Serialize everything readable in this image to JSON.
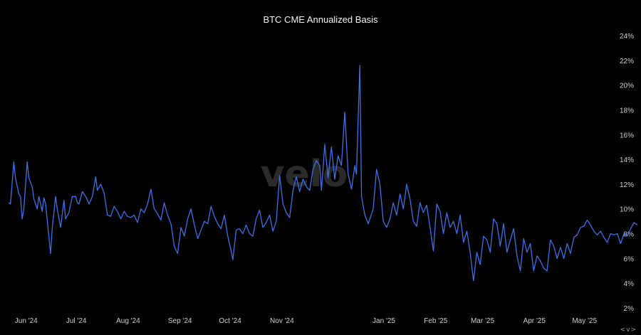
{
  "watermark": "velo",
  "nav": {
    "label": "<v>"
  },
  "chart_data": {
    "type": "line",
    "title": "BTC CME Annualized Basis",
    "xlabel": "",
    "ylabel": "",
    "ylim": [
      2,
      24
    ],
    "y_unit": "%",
    "y_ticks": [
      "24%",
      "22%",
      "20%",
      "18%",
      "16%",
      "14%",
      "12%",
      "10%",
      "8%",
      "6%",
      "4%",
      "2%"
    ],
    "x_range": [
      "2024-05-27",
      "2025-05-25"
    ],
    "x_ticks": [
      {
        "date": "2024-06-01",
        "label": "Jun '24"
      },
      {
        "date": "2024-07-01",
        "label": "Jul '24"
      },
      {
        "date": "2024-08-01",
        "label": "Aug '24"
      },
      {
        "date": "2024-09-01",
        "label": "Sep '24"
      },
      {
        "date": "2024-10-01",
        "label": "Oct '24"
      },
      {
        "date": "2024-11-01",
        "label": "Nov '24"
      },
      {
        "date": "2025-01-01",
        "label": "Jan '25"
      },
      {
        "date": "2025-02-01",
        "label": "Feb '25"
      },
      {
        "date": "2025-03-01",
        "label": "Mar '25"
      },
      {
        "date": "2025-04-01",
        "label": "Apr '25"
      },
      {
        "date": "2025-05-01",
        "label": "May '25"
      }
    ],
    "grid": false,
    "line_color": "#3b6fe8",
    "series": [
      {
        "values": [
          [
            "2024-05-28",
            10.5
          ],
          [
            "2024-05-29",
            10.4
          ],
          [
            "2024-05-31",
            13.8
          ],
          [
            "2024-06-01",
            12.5
          ],
          [
            "2024-06-03",
            11.2
          ],
          [
            "2024-06-04",
            11.0
          ],
          [
            "2024-06-05",
            9.2
          ],
          [
            "2024-06-06",
            10.0
          ],
          [
            "2024-06-08",
            13.8
          ],
          [
            "2024-06-09",
            12.5
          ],
          [
            "2024-06-11",
            11.8
          ],
          [
            "2024-06-12",
            10.8
          ],
          [
            "2024-06-14",
            10.0
          ],
          [
            "2024-06-15",
            11.0
          ],
          [
            "2024-06-17",
            9.8
          ],
          [
            "2024-06-18",
            10.9
          ],
          [
            "2024-06-19",
            10.4
          ],
          [
            "2024-06-22",
            6.4
          ],
          [
            "2024-06-23",
            8.5
          ],
          [
            "2024-06-25",
            11.0
          ],
          [
            "2024-06-26",
            10.0
          ],
          [
            "2024-06-28",
            8.5
          ],
          [
            "2024-06-30",
            10.7
          ],
          [
            "2024-07-01",
            9.2
          ],
          [
            "2024-07-03",
            9.7
          ],
          [
            "2024-07-05",
            11.0
          ],
          [
            "2024-07-07",
            11.0
          ],
          [
            "2024-07-08",
            10.5
          ],
          [
            "2024-07-09",
            10.4
          ],
          [
            "2024-07-11",
            11.4
          ],
          [
            "2024-07-13",
            11.0
          ],
          [
            "2024-07-15",
            10.4
          ],
          [
            "2024-07-17",
            11.0
          ],
          [
            "2024-07-19",
            12.6
          ],
          [
            "2024-07-20",
            11.5
          ],
          [
            "2024-07-22",
            12.0
          ],
          [
            "2024-07-24",
            11.3
          ],
          [
            "2024-07-26",
            9.5
          ],
          [
            "2024-07-28",
            9.4
          ],
          [
            "2024-07-30",
            10.2
          ],
          [
            "2024-08-01",
            9.8
          ],
          [
            "2024-08-03",
            9.2
          ],
          [
            "2024-08-05",
            9.8
          ],
          [
            "2024-08-07",
            9.4
          ],
          [
            "2024-08-09",
            9.3
          ],
          [
            "2024-08-11",
            9.5
          ],
          [
            "2024-08-13",
            8.9
          ],
          [
            "2024-08-15",
            10.0
          ],
          [
            "2024-08-17",
            9.7
          ],
          [
            "2024-08-19",
            10.4
          ],
          [
            "2024-08-21",
            11.6
          ],
          [
            "2024-08-23",
            10.0
          ],
          [
            "2024-08-25",
            9.6
          ],
          [
            "2024-08-27",
            9.1
          ],
          [
            "2024-08-29",
            10.5
          ],
          [
            "2024-08-31",
            9.5
          ],
          [
            "2024-09-02",
            8.8
          ],
          [
            "2024-09-04",
            7.0
          ],
          [
            "2024-09-06",
            6.4
          ],
          [
            "2024-09-08",
            8.5
          ],
          [
            "2024-09-10",
            7.8
          ],
          [
            "2024-09-12",
            9.2
          ],
          [
            "2024-09-14",
            10.0
          ],
          [
            "2024-09-16",
            8.7
          ],
          [
            "2024-09-18",
            7.6
          ],
          [
            "2024-09-20",
            8.3
          ],
          [
            "2024-09-22",
            9.0
          ],
          [
            "2024-09-24",
            8.8
          ],
          [
            "2024-09-26",
            10.2
          ],
          [
            "2024-09-28",
            9.4
          ],
          [
            "2024-09-30",
            8.8
          ],
          [
            "2024-10-02",
            8.4
          ],
          [
            "2024-10-04",
            9.5
          ],
          [
            "2024-10-06",
            7.8
          ],
          [
            "2024-10-08",
            6.6
          ],
          [
            "2024-10-09",
            5.9
          ],
          [
            "2024-10-11",
            8.3
          ],
          [
            "2024-10-13",
            8.4
          ],
          [
            "2024-10-15",
            8.0
          ],
          [
            "2024-10-17",
            8.7
          ],
          [
            "2024-10-19",
            8.0
          ],
          [
            "2024-10-21",
            7.8
          ],
          [
            "2024-10-23",
            9.2
          ],
          [
            "2024-10-25",
            9.9
          ],
          [
            "2024-10-27",
            8.5
          ],
          [
            "2024-10-29",
            8.9
          ],
          [
            "2024-10-31",
            9.5
          ],
          [
            "2024-11-02",
            8.2
          ],
          [
            "2024-11-04",
            9.0
          ],
          [
            "2024-11-06",
            12.7
          ],
          [
            "2024-11-08",
            10.4
          ],
          [
            "2024-11-10",
            9.7
          ],
          [
            "2024-11-12",
            9.3
          ],
          [
            "2024-11-14",
            11.5
          ],
          [
            "2024-11-16",
            12.6
          ],
          [
            "2024-11-18",
            11.4
          ],
          [
            "2024-11-20",
            12.4
          ],
          [
            "2024-11-22",
            11.8
          ],
          [
            "2024-11-24",
            11.5
          ],
          [
            "2024-11-26",
            13.2
          ],
          [
            "2024-11-28",
            13.9
          ],
          [
            "2024-11-30",
            13.5
          ],
          [
            "2024-12-01",
            11.5
          ],
          [
            "2024-12-03",
            15.2
          ],
          [
            "2024-12-05",
            12.5
          ],
          [
            "2024-12-07",
            15.0
          ],
          [
            "2024-12-09",
            12.4
          ],
          [
            "2024-12-11",
            14.3
          ],
          [
            "2024-12-13",
            13.5
          ],
          [
            "2024-12-15",
            17.8
          ],
          [
            "2024-12-17",
            12.8
          ],
          [
            "2024-12-19",
            11.6
          ],
          [
            "2024-12-21",
            13.5
          ],
          [
            "2024-12-22",
            12.8
          ],
          [
            "2024-12-24",
            21.6
          ],
          [
            "2024-12-25",
            11.0
          ],
          [
            "2024-12-27",
            9.5
          ],
          [
            "2024-12-29",
            8.8
          ],
          [
            "2025-01-01",
            10.0
          ],
          [
            "2025-01-03",
            13.2
          ],
          [
            "2025-01-05",
            12.0
          ],
          [
            "2025-01-07",
            9.0
          ],
          [
            "2025-01-09",
            8.5
          ],
          [
            "2025-01-11",
            9.2
          ],
          [
            "2025-01-13",
            10.5
          ],
          [
            "2025-01-15",
            9.5
          ],
          [
            "2025-01-17",
            11.2
          ],
          [
            "2025-01-19",
            10.0
          ],
          [
            "2025-01-21",
            12.0
          ],
          [
            "2025-01-23",
            10.8
          ],
          [
            "2025-01-25",
            9.0
          ],
          [
            "2025-01-27",
            8.6
          ],
          [
            "2025-01-29",
            10.5
          ],
          [
            "2025-01-31",
            9.7
          ],
          [
            "2025-02-02",
            10.3
          ],
          [
            "2025-02-04",
            8.5
          ],
          [
            "2025-02-06",
            6.6
          ],
          [
            "2025-02-08",
            10.4
          ],
          [
            "2025-02-10",
            9.8
          ],
          [
            "2025-02-12",
            8.0
          ],
          [
            "2025-02-14",
            9.7
          ],
          [
            "2025-02-16",
            8.5
          ],
          [
            "2025-02-18",
            9.0
          ],
          [
            "2025-02-20",
            8.0
          ],
          [
            "2025-02-22",
            9.5
          ],
          [
            "2025-02-24",
            7.3
          ],
          [
            "2025-02-26",
            8.2
          ],
          [
            "2025-02-28",
            6.5
          ],
          [
            "2025-03-02",
            4.2
          ],
          [
            "2025-03-04",
            6.5
          ],
          [
            "2025-03-06",
            5.5
          ],
          [
            "2025-03-08",
            7.8
          ],
          [
            "2025-03-10",
            7.5
          ],
          [
            "2025-03-12",
            6.5
          ],
          [
            "2025-03-14",
            9.2
          ],
          [
            "2025-03-16",
            8.8
          ],
          [
            "2025-03-18",
            7.0
          ],
          [
            "2025-03-20",
            8.8
          ],
          [
            "2025-03-22",
            6.5
          ],
          [
            "2025-03-24",
            7.5
          ],
          [
            "2025-03-26",
            8.4
          ],
          [
            "2025-03-28",
            6.2
          ],
          [
            "2025-03-30",
            5.0
          ],
          [
            "2025-04-01",
            7.6
          ],
          [
            "2025-04-03",
            6.5
          ],
          [
            "2025-04-05",
            7.2
          ],
          [
            "2025-04-07",
            5.0
          ],
          [
            "2025-04-09",
            6.2
          ],
          [
            "2025-04-11",
            5.8
          ],
          [
            "2025-04-13",
            5.2
          ],
          [
            "2025-04-15",
            5.0
          ],
          [
            "2025-04-17",
            7.5
          ],
          [
            "2025-04-19",
            7.0
          ],
          [
            "2025-04-21",
            6.0
          ],
          [
            "2025-04-23",
            6.9
          ],
          [
            "2025-04-25",
            6.0
          ],
          [
            "2025-04-27",
            7.2
          ],
          [
            "2025-04-29",
            6.4
          ],
          [
            "2025-05-01",
            7.7
          ],
          [
            "2025-05-03",
            7.9
          ],
          [
            "2025-05-05",
            8.5
          ],
          [
            "2025-05-07",
            8.6
          ],
          [
            "2025-05-09",
            9.1
          ],
          [
            "2025-05-11",
            8.7
          ],
          [
            "2025-05-13",
            8.2
          ],
          [
            "2025-05-15",
            7.9
          ],
          [
            "2025-05-17",
            8.2
          ],
          [
            "2025-05-19",
            7.7
          ],
          [
            "2025-05-21",
            7.3
          ],
          [
            "2025-05-23",
            8.0
          ],
          [
            "2025-05-25",
            7.9
          ],
          [
            "2025-05-27",
            8.0
          ],
          [
            "2025-05-29",
            7.2
          ],
          [
            "2025-05-31",
            8.0
          ],
          [
            "2025-06-02",
            7.8
          ],
          [
            "2025-06-04",
            8.4
          ],
          [
            "2025-06-06",
            8.9
          ],
          [
            "2025-06-08",
            8.7
          ]
        ]
      }
    ]
  }
}
